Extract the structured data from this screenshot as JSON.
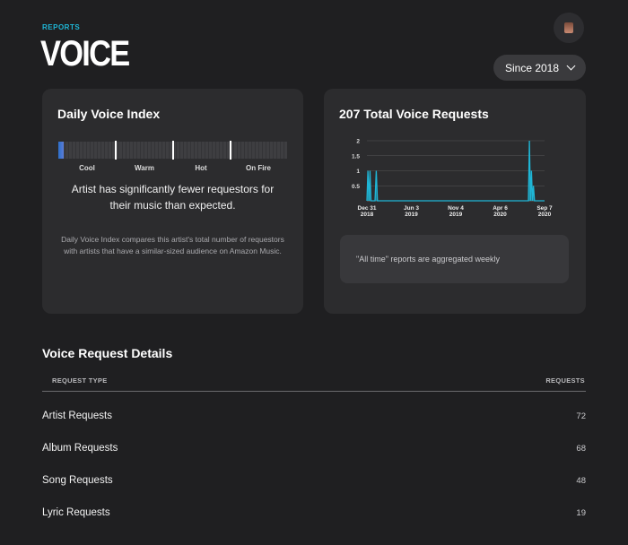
{
  "header": {
    "eyebrow": "REPORTS",
    "title": "VOICE",
    "range_label": "Since 2018"
  },
  "daily_index": {
    "title": "Daily Voice Index",
    "scale_labels": [
      "Cool",
      "Warm",
      "Hot",
      "On Fire"
    ],
    "level_fraction": 0.025,
    "insight": "Artist has significantly fewer requestors for their music than expected.",
    "explanation": "Daily Voice Index compares this artist's total number of requestors with artists that have a similar-sized audience on Amazon Music."
  },
  "total_requests": {
    "title": "207 Total Voice Requests",
    "note": "\"All time\" reports are aggregated weekly"
  },
  "chart_data": {
    "type": "area",
    "title": "",
    "xlabel": "",
    "ylabel": "",
    "y_ticks": [
      "2",
      "1.5",
      "1",
      "0.5"
    ],
    "x_ticks": [
      {
        "label": "Dec 31",
        "sub": "2018",
        "x": 0
      },
      {
        "label": "Jun 3",
        "sub": "2019",
        "x": 22
      },
      {
        "label": "Nov 4",
        "sub": "2019",
        "x": 44
      },
      {
        "label": "Apr 6",
        "sub": "2020",
        "x": 66
      },
      {
        "label": "Sep 7",
        "sub": "2020",
        "x": 88
      }
    ],
    "ylim": [
      0,
      2
    ],
    "xlim": [
      0,
      88
    ],
    "series": [
      {
        "color": "#1fb6d6",
        "points": [
          [
            0,
            0
          ],
          [
            0.5,
            1
          ],
          [
            1,
            0
          ],
          [
            1.5,
            1
          ],
          [
            2,
            0
          ],
          [
            4,
            0
          ],
          [
            4.6,
            1
          ],
          [
            5.2,
            0
          ],
          [
            80,
            0
          ],
          [
            80.5,
            2
          ],
          [
            81,
            0
          ],
          [
            81.5,
            1
          ],
          [
            82,
            0
          ],
          [
            82.5,
            0.5
          ],
          [
            83,
            0
          ],
          [
            88,
            0
          ]
        ]
      }
    ],
    "grid": true
  },
  "details": {
    "title": "Voice Request Details",
    "col_type": "REQUEST TYPE",
    "col_requests": "REQUESTS",
    "rows": [
      {
        "name": "Artist Requests",
        "value": "72"
      },
      {
        "name": "Album Requests",
        "value": "68"
      },
      {
        "name": "Song Requests",
        "value": "48"
      },
      {
        "name": "Lyric Requests",
        "value": "19"
      }
    ]
  }
}
